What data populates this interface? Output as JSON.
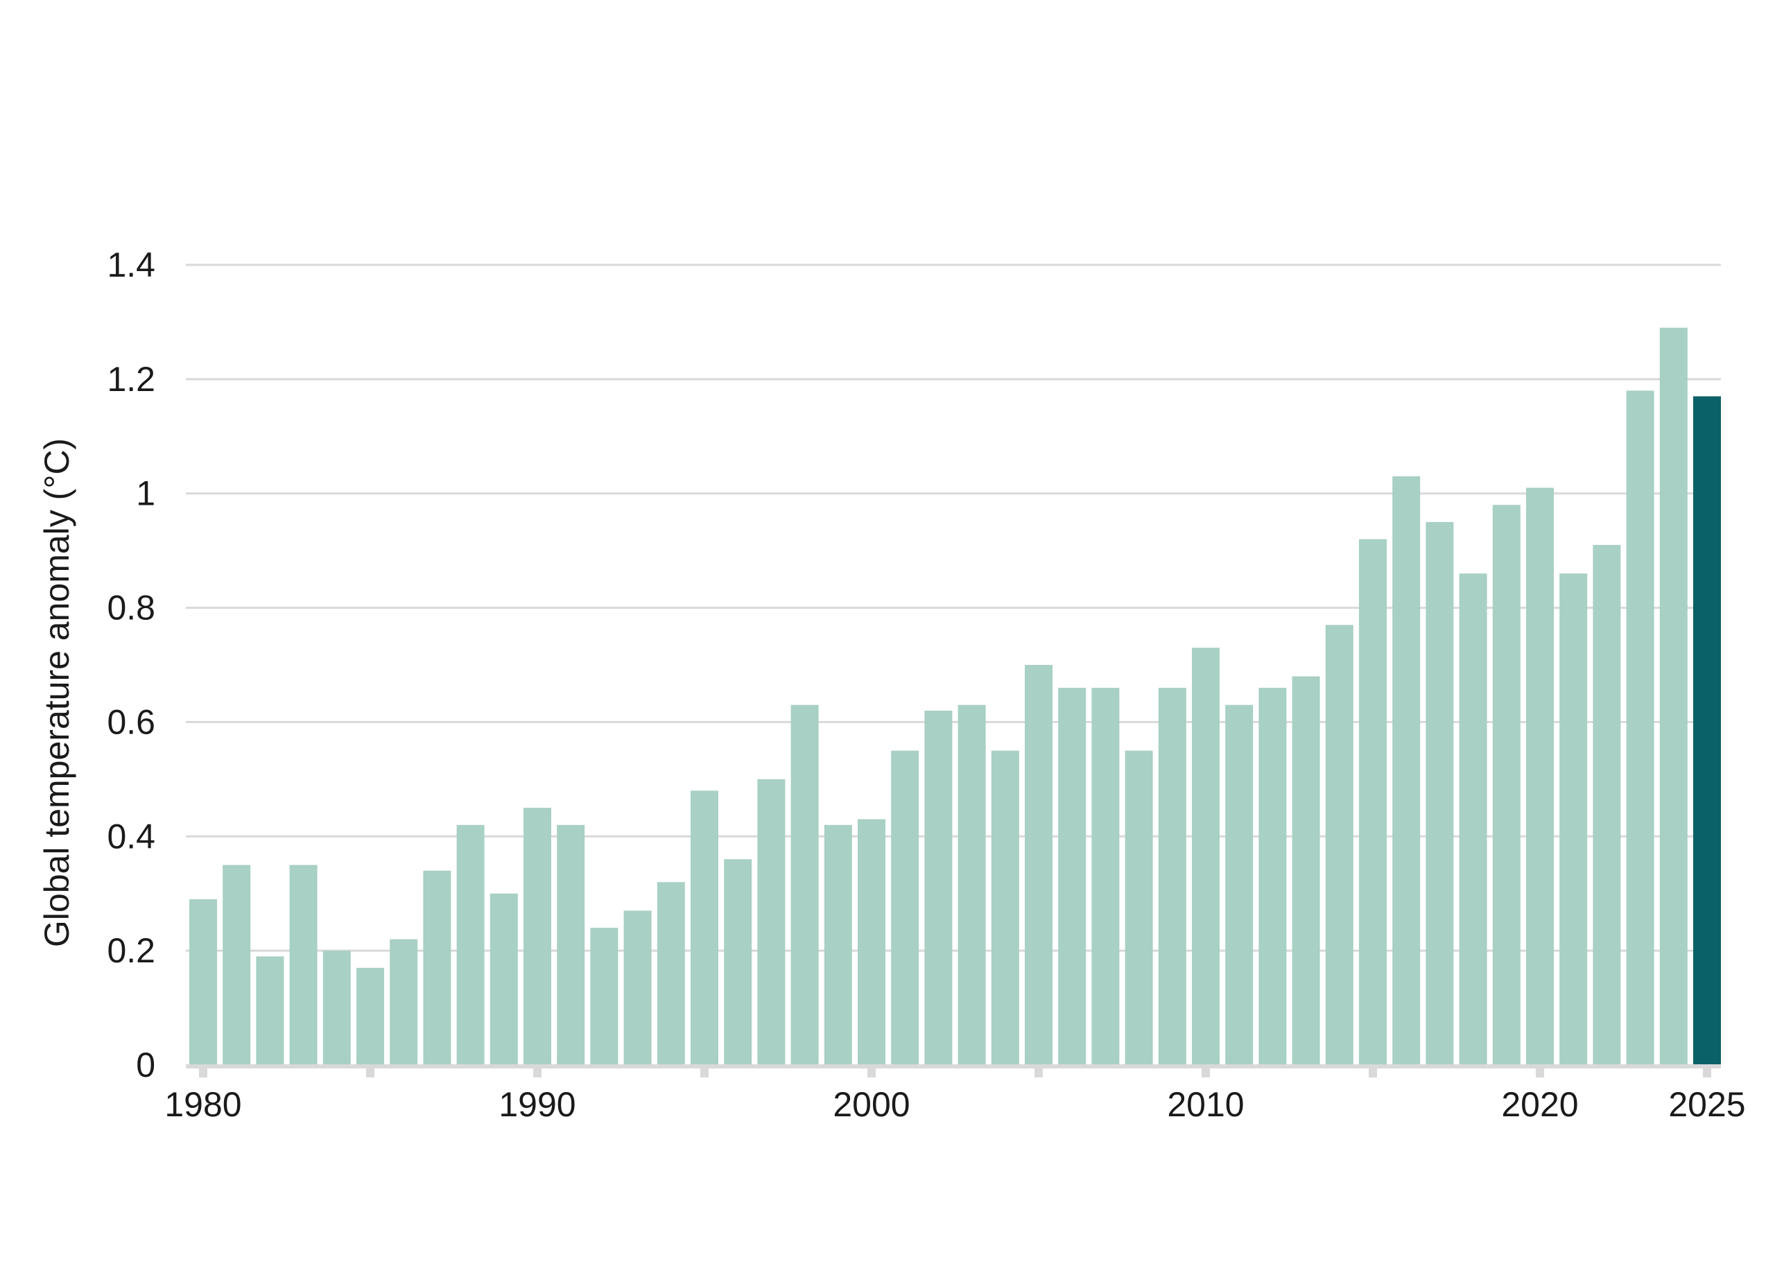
{
  "chart_data": {
    "type": "bar",
    "title": "",
    "xlabel": "",
    "ylabel": "Global temperature anomaly (°C)",
    "ylim": [
      0,
      1.4
    ],
    "yticks": [
      0,
      0.2,
      0.4,
      0.6,
      0.8,
      1,
      1.2,
      1.4
    ],
    "ytick_labels": [
      "0",
      "0.2",
      "0.4",
      "0.6",
      "0.8",
      "1",
      "1.2",
      "1.4"
    ],
    "xticks": [
      1980,
      1985,
      1990,
      1995,
      2000,
      2005,
      2010,
      2015,
      2020,
      2025
    ],
    "xtick_labels": [
      "1980",
      "",
      "1990",
      "",
      "2000",
      "",
      "2010",
      "",
      "2020",
      "2025"
    ],
    "grid": true,
    "legend": "none",
    "categories": [
      1980,
      1981,
      1982,
      1983,
      1984,
      1985,
      1986,
      1987,
      1988,
      1989,
      1990,
      1991,
      1992,
      1993,
      1994,
      1995,
      1996,
      1997,
      1998,
      1999,
      2000,
      2001,
      2002,
      2003,
      2004,
      2005,
      2006,
      2007,
      2008,
      2009,
      2010,
      2011,
      2012,
      2013,
      2014,
      2015,
      2016,
      2017,
      2018,
      2019,
      2020,
      2021,
      2022,
      2023,
      2024,
      2025
    ],
    "values": [
      0.29,
      0.35,
      0.19,
      0.35,
      0.2,
      0.17,
      0.22,
      0.34,
      0.42,
      0.3,
      0.45,
      0.42,
      0.24,
      0.27,
      0.32,
      0.48,
      0.36,
      0.5,
      0.63,
      0.42,
      0.43,
      0.55,
      0.62,
      0.63,
      0.55,
      0.7,
      0.66,
      0.66,
      0.55,
      0.66,
      0.73,
      0.63,
      0.66,
      0.68,
      0.77,
      0.92,
      1.03,
      0.95,
      0.86,
      0.98,
      1.01,
      0.86,
      0.91,
      1.18,
      1.29,
      1.17
    ],
    "highlight_category": 2025,
    "colors": {
      "bar": "#a8d0c4",
      "highlight": "#0b6168",
      "grid": "#d9d9d9",
      "axis": "#d9d9d9",
      "text": "#1a1a1a"
    }
  }
}
